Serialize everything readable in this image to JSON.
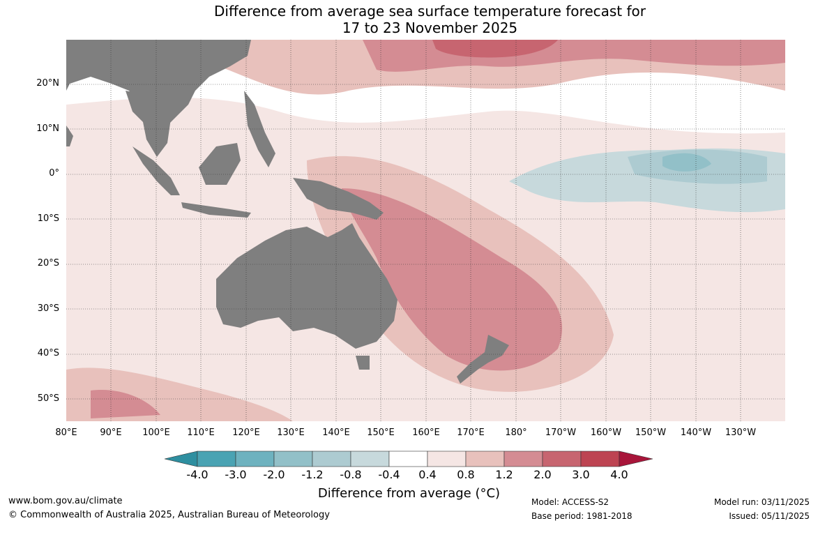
{
  "title": {
    "line1": "Difference from average sea surface temperature forecast for",
    "line2": "17 to 23 November 2025"
  },
  "map": {
    "lat_labels": [
      "20°N",
      "10°N",
      "0°",
      "10°S",
      "20°S",
      "30°S",
      "40°S",
      "50°S"
    ],
    "lon_labels": [
      "80°E",
      "90°E",
      "100°E",
      "110°E",
      "120°E",
      "130°E",
      "140°E",
      "150°E",
      "160°E",
      "170°E",
      "180°",
      "170°W",
      "160°W",
      "150°W",
      "140°W",
      "130°W"
    ],
    "land_color": "#7f7f7f"
  },
  "colorbar": {
    "ticks": [
      "-4.0",
      "-3.0",
      "-2.0",
      "-1.2",
      "-0.8",
      "-0.4",
      "0.4",
      "0.8",
      "1.2",
      "2.0",
      "3.0",
      "4.0"
    ],
    "colors": [
      "#2e8fa0",
      "#4aa3b3",
      "#6eb2bf",
      "#92c0c8",
      "#adcbd1",
      "#c7d9dc",
      "#ffffff",
      "#f5e6e4",
      "#e8c1bc",
      "#d48c93",
      "#c76570",
      "#bd4452",
      "#a8153a"
    ],
    "label": "Difference from average (°C)"
  },
  "footer": {
    "website": "www.bom.gov.au/climate",
    "copyright": "© Commonwealth of Australia 2025, Australian Bureau of Meteorology",
    "model": "Model: ACCESS-S2",
    "base_period": "Base period: 1981-2018",
    "model_run": "Model run: 03/11/2025",
    "issued": "Issued: 05/11/2025"
  }
}
